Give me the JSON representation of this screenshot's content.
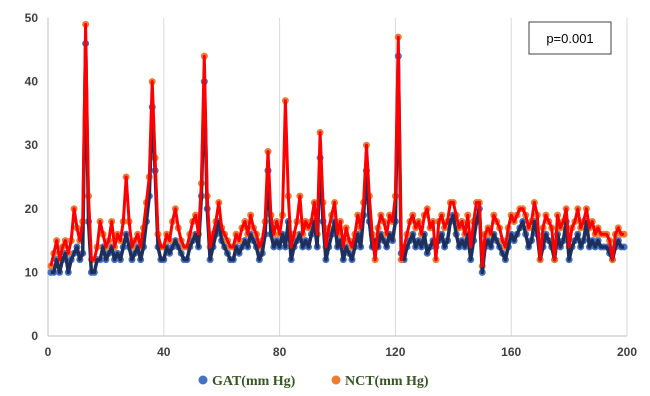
{
  "chart_data": {
    "type": "scatter",
    "annotation": "p=0.001",
    "xlim": [
      0,
      200
    ],
    "ylim": [
      0,
      50
    ],
    "x_ticks": [
      "0",
      "40",
      "80",
      "120",
      "160",
      "200"
    ],
    "y_ticks": [
      "0",
      "10",
      "20",
      "30",
      "40",
      "50"
    ],
    "grid": "vertical",
    "legend_position": "bottom",
    "series": [
      {
        "name": "GAT(mm Hg)",
        "marker_color": "#4472c4",
        "line_color": "#1f2f5c",
        "x": [
          1,
          2,
          3,
          4,
          5,
          6,
          7,
          8,
          9,
          10,
          11,
          12,
          13,
          14,
          15,
          16,
          17,
          18,
          19,
          20,
          21,
          22,
          23,
          24,
          25,
          26,
          27,
          28,
          29,
          30,
          31,
          32,
          33,
          34,
          35,
          36,
          37,
          38,
          39,
          40,
          41,
          42,
          43,
          44,
          45,
          46,
          47,
          48,
          49,
          50,
          51,
          52,
          53,
          54,
          55,
          56,
          57,
          58,
          59,
          60,
          61,
          62,
          63,
          64,
          65,
          66,
          67,
          68,
          69,
          70,
          71,
          72,
          73,
          74,
          75,
          76,
          77,
          78,
          79,
          80,
          81,
          82,
          83,
          84,
          85,
          86,
          87,
          88,
          89,
          90,
          91,
          92,
          93,
          94,
          95,
          96,
          97,
          98,
          99,
          100,
          101,
          102,
          103,
          104,
          105,
          106,
          107,
          108,
          109,
          110,
          111,
          112,
          113,
          114,
          115,
          116,
          117,
          118,
          119,
          120,
          121,
          122,
          123,
          124,
          125,
          126,
          127,
          128,
          129,
          130,
          131,
          132,
          133,
          134,
          135,
          136,
          137,
          138,
          139,
          140,
          141,
          142,
          143,
          144,
          145,
          146,
          147,
          148,
          149,
          150,
          151,
          152,
          153,
          154,
          155,
          156,
          157,
          158,
          159,
          160,
          161,
          162,
          163,
          164,
          165,
          166,
          167,
          168,
          169,
          170,
          171,
          172,
          173,
          174,
          175,
          176,
          177,
          178,
          179,
          180,
          181,
          182,
          183,
          184,
          185,
          186,
          187,
          188,
          189,
          190,
          191,
          192,
          193,
          194,
          195,
          196,
          197,
          198,
          199
        ],
        "y": [
          10,
          10,
          12,
          10,
          12,
          13,
          10,
          12,
          13,
          14,
          12,
          13,
          46,
          18,
          10,
          10,
          12,
          12,
          14,
          12,
          13,
          14,
          12,
          13,
          12,
          14,
          16,
          14,
          12,
          13,
          14,
          12,
          14,
          18,
          22,
          36,
          26,
          14,
          12,
          12,
          14,
          13,
          14,
          15,
          14,
          13,
          12,
          12,
          14,
          15,
          16,
          14,
          22,
          40,
          20,
          12,
          14,
          16,
          18,
          15,
          14,
          13,
          12,
          12,
          14,
          13,
          14,
          15,
          14,
          16,
          15,
          14,
          12,
          13,
          16,
          26,
          16,
          14,
          15,
          14,
          16,
          14,
          18,
          12,
          14,
          15,
          16,
          14,
          15,
          14,
          16,
          18,
          14,
          28,
          18,
          12,
          14,
          16,
          18,
          14,
          15,
          12,
          14,
          13,
          12,
          14,
          16,
          14,
          19,
          26,
          18,
          14,
          15,
          14,
          16,
          15,
          14,
          16,
          15,
          18,
          44,
          13,
          12,
          14,
          15,
          16,
          14,
          15,
          14,
          16,
          13,
          14,
          15,
          14,
          15,
          16,
          14,
          15,
          18,
          19,
          16,
          14,
          15,
          14,
          16,
          12,
          15,
          18,
          20,
          10,
          14,
          15,
          14,
          16,
          15,
          14,
          13,
          12,
          14,
          16,
          15,
          16,
          17,
          18,
          16,
          14,
          15,
          18,
          16,
          12,
          14,
          16,
          15,
          14,
          12,
          16,
          14,
          15,
          18,
          12,
          14,
          15,
          16,
          14,
          15,
          18,
          14,
          15,
          14,
          15,
          14,
          14,
          14,
          13,
          12,
          14,
          15,
          14,
          14
        ]
      },
      {
        "name": "NCT(mm Hg)",
        "marker_color": "#ed7d31",
        "line_color": "#ff0000",
        "x": [
          1,
          2,
          3,
          4,
          5,
          6,
          7,
          8,
          9,
          10,
          11,
          12,
          13,
          14,
          15,
          16,
          17,
          18,
          19,
          20,
          21,
          22,
          23,
          24,
          25,
          26,
          27,
          28,
          29,
          30,
          31,
          32,
          33,
          34,
          35,
          36,
          37,
          38,
          39,
          40,
          41,
          42,
          43,
          44,
          45,
          46,
          47,
          48,
          49,
          50,
          51,
          52,
          53,
          54,
          55,
          56,
          57,
          58,
          59,
          60,
          61,
          62,
          63,
          64,
          65,
          66,
          67,
          68,
          69,
          70,
          71,
          72,
          73,
          74,
          75,
          76,
          77,
          78,
          79,
          80,
          81,
          82,
          83,
          84,
          85,
          86,
          87,
          88,
          89,
          90,
          91,
          92,
          93,
          94,
          95,
          96,
          97,
          98,
          99,
          100,
          101,
          102,
          103,
          104,
          105,
          106,
          107,
          108,
          109,
          110,
          111,
          112,
          113,
          114,
          115,
          116,
          117,
          118,
          119,
          120,
          121,
          122,
          123,
          124,
          125,
          126,
          127,
          128,
          129,
          130,
          131,
          132,
          133,
          134,
          135,
          136,
          137,
          138,
          139,
          140,
          141,
          142,
          143,
          144,
          145,
          146,
          147,
          148,
          149,
          150,
          151,
          152,
          153,
          154,
          155,
          156,
          157,
          158,
          159,
          160,
          161,
          162,
          163,
          164,
          165,
          166,
          167,
          168,
          169,
          170,
          171,
          172,
          173,
          174,
          175,
          176,
          177,
          178,
          179,
          180,
          181,
          182,
          183,
          184,
          185,
          186,
          187,
          188,
          189,
          190,
          191,
          192,
          193,
          194,
          195,
          196,
          197,
          198,
          199
        ],
        "y": [
          11,
          13,
          15,
          12,
          14,
          15,
          13,
          15,
          20,
          17,
          15,
          18,
          49,
          22,
          12,
          12,
          14,
          18,
          16,
          14,
          15,
          18,
          14,
          16,
          15,
          18,
          25,
          18,
          14,
          15,
          16,
          14,
          17,
          21,
          25,
          40,
          28,
          16,
          14,
          14,
          16,
          15,
          18,
          20,
          17,
          15,
          14,
          14,
          16,
          18,
          19,
          16,
          24,
          44,
          22,
          14,
          16,
          18,
          21,
          17,
          16,
          15,
          14,
          14,
          16,
          15,
          17,
          18,
          16,
          19,
          17,
          16,
          14,
          15,
          18,
          29,
          19,
          16,
          18,
          16,
          19,
          37,
          22,
          14,
          16,
          18,
          22,
          16,
          18,
          17,
          18,
          21,
          16,
          32,
          21,
          14,
          17,
          19,
          21,
          16,
          18,
          14,
          17,
          15,
          14,
          16,
          19,
          17,
          21,
          30,
          22,
          16,
          12,
          17,
          19,
          18,
          16,
          19,
          18,
          22,
          47,
          12,
          14,
          16,
          18,
          19,
          17,
          18,
          16,
          19,
          20,
          17,
          18,
          12,
          18,
          19,
          17,
          18,
          21,
          21,
          19,
          17,
          18,
          16,
          19,
          14,
          18,
          21,
          21,
          11,
          16,
          17,
          16,
          19,
          18,
          17,
          15,
          14,
          17,
          19,
          18,
          19,
          20,
          20,
          19,
          17,
          18,
          21,
          19,
          12,
          17,
          19,
          18,
          17,
          12,
          19,
          17,
          18,
          20,
          14,
          17,
          18,
          20,
          17,
          18,
          20,
          17,
          18,
          16,
          17,
          16,
          16,
          16,
          15,
          12,
          16,
          17,
          16,
          16
        ]
      }
    ]
  }
}
